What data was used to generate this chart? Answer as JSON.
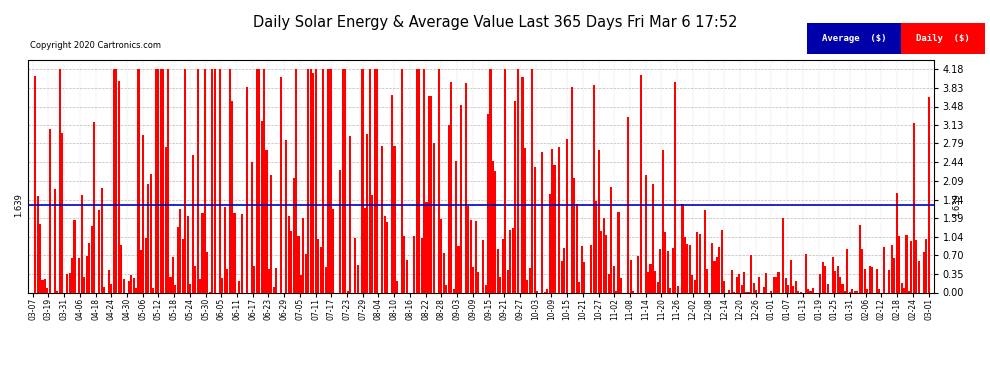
{
  "title": "Daily Solar Energy & Average Value Last 365 Days Fri Mar 6 17:52",
  "copyright_text": "Copyright 2020 Cartronics.com",
  "average_value": 1.639,
  "average_label": "1.639",
  "bar_color": "#ff0000",
  "average_color": "#0000bb",
  "background_color": "#ffffff",
  "plot_bg_color": "#ffffff",
  "ylim": [
    0.0,
    4.35
  ],
  "yticks": [
    0.0,
    0.35,
    0.7,
    1.04,
    1.39,
    1.74,
    2.09,
    2.44,
    2.79,
    3.13,
    3.48,
    3.83,
    4.18
  ],
  "legend_avg_color": "#0000aa",
  "legend_daily_color": "#ff0000",
  "legend_avg_text": "Average  ($)",
  "legend_daily_text": "Daily  ($)",
  "x_tick_labels": [
    "03-07",
    "03-19",
    "03-31",
    "04-06",
    "04-18",
    "04-24",
    "04-30",
    "05-06",
    "05-12",
    "05-18",
    "05-24",
    "05-30",
    "06-05",
    "06-11",
    "06-17",
    "06-23",
    "06-29",
    "07-05",
    "07-11",
    "07-17",
    "07-23",
    "07-29",
    "08-04",
    "08-10",
    "08-16",
    "08-22",
    "08-28",
    "09-03",
    "09-09",
    "09-15",
    "09-21",
    "09-27",
    "10-03",
    "10-09",
    "10-15",
    "10-21",
    "10-27",
    "11-02",
    "11-08",
    "11-14",
    "11-20",
    "11-26",
    "12-02",
    "12-08",
    "12-14",
    "12-20",
    "12-26",
    "01-01",
    "01-07",
    "01-13",
    "01-19",
    "01-25",
    "01-31",
    "02-06",
    "02-12",
    "02-18",
    "02-24",
    "03-01"
  ],
  "seed": 42,
  "n_days": 365
}
